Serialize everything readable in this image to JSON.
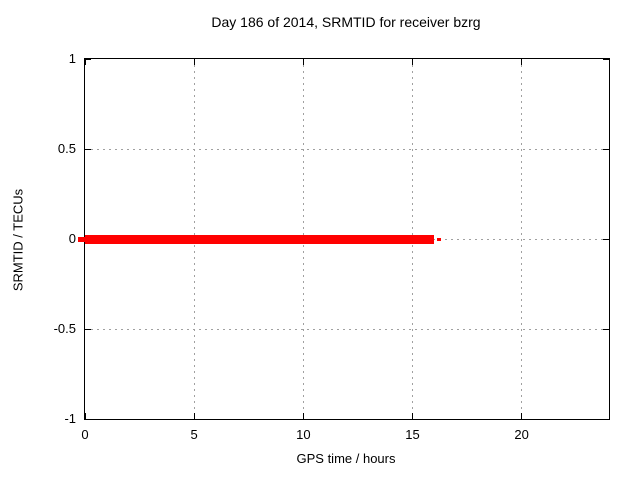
{
  "window": {
    "background": "#ffffff"
  },
  "chart_data": {
    "type": "line",
    "title": "Day 186 of 2014, SRMTID for receiver bzrg",
    "xlabel": "GPS time / hours",
    "ylabel": "SRMTID / TECUs",
    "xlim": [
      0,
      24
    ],
    "ylim": [
      -1,
      1
    ],
    "x_ticks": [
      0,
      5,
      10,
      15,
      20
    ],
    "x_tick_labels": [
      "0",
      "5",
      "10",
      "15",
      "20"
    ],
    "y_ticks": [
      1,
      0.5,
      0,
      -0.5,
      -1
    ],
    "y_tick_labels": [
      "1",
      "0.5",
      "0",
      "-0.5",
      "-1"
    ],
    "grid": true,
    "grid_style": "dashed",
    "legend": "none",
    "series": [
      {
        "name": "SRMTID",
        "color": "#ff0000",
        "segments": [
          {
            "x_start": 0,
            "x_end": 16,
            "y": 0,
            "thickness_px": 9
          },
          {
            "x_start": 16.12,
            "x_end": 16.3,
            "y": 0,
            "thickness_px": 3
          }
        ]
      }
    ],
    "colors": {
      "axis": "#000000",
      "grid": "#a0a0a0",
      "text": "#000000",
      "series": "#ff0000",
      "background": "#ffffff"
    }
  }
}
